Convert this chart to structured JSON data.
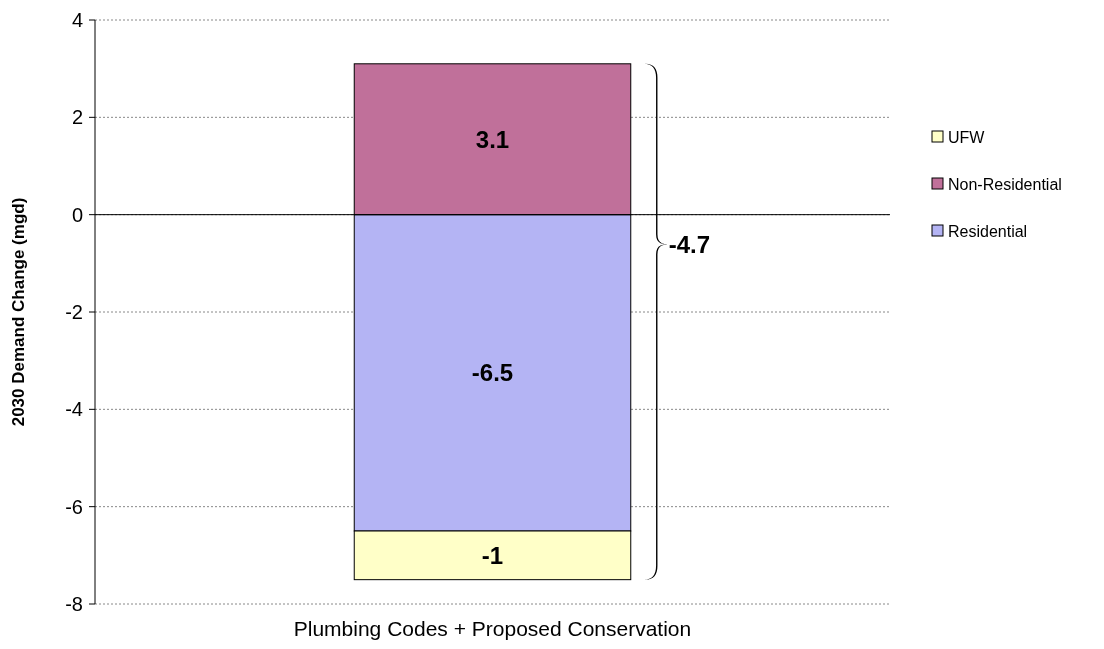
{
  "chart_data": {
    "type": "bar",
    "stacked": true,
    "ylabel": "2030 Demand Change (mgd)",
    "categories": [
      "Plumbing Codes + Proposed Conservation"
    ],
    "series": [
      {
        "name": "Residential",
        "color": "#b4b4f4",
        "values": [
          -6.5
        ]
      },
      {
        "name": "Non-Residential",
        "color": "#c0709a",
        "values": [
          3.1
        ]
      },
      {
        "name": "UFW",
        "color": "#ffffc8",
        "values": [
          -1
        ]
      }
    ],
    "data_labels": true,
    "annotations": [
      "-4.7"
    ],
    "ylim": [
      -8,
      4
    ],
    "yticks": [
      -8,
      -6,
      -4,
      -2,
      0,
      2,
      4
    ],
    "grid": "y",
    "legend": "right"
  }
}
